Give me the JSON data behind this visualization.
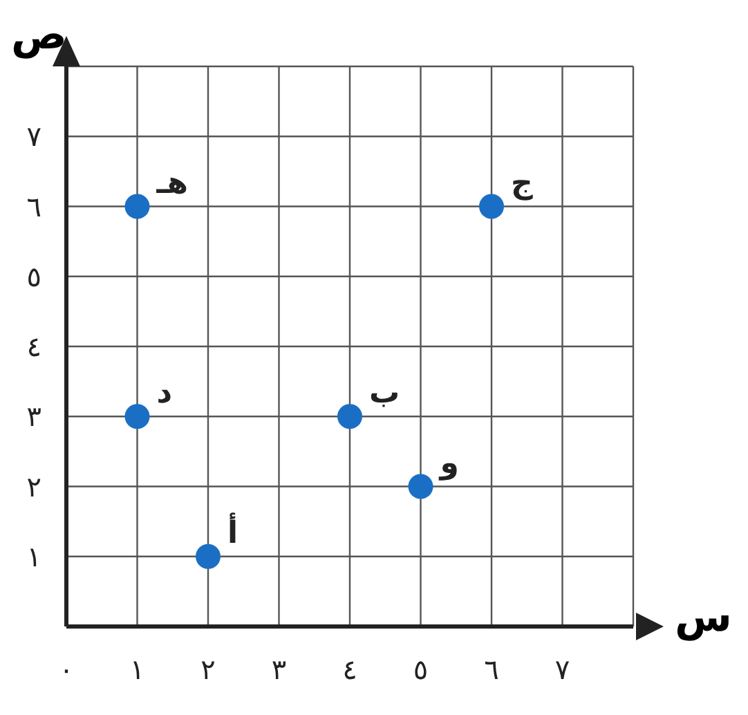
{
  "chart_data": {
    "type": "scatter",
    "xlabel": "س",
    "ylabel": "ص",
    "x": [
      2,
      4,
      6,
      1,
      1,
      5
    ],
    "series": [
      {
        "color": "#1a6fc4",
        "values": [
          1,
          3,
          6,
          3,
          6,
          2
        ]
      }
    ],
    "xlim": [
      0,
      8
    ],
    "ylim": [
      0,
      8
    ],
    "xticks": [
      {
        "value": 0,
        "label": "٠"
      },
      {
        "value": 1,
        "label": "١"
      },
      {
        "value": 2,
        "label": "٢"
      },
      {
        "value": 3,
        "label": "٣"
      },
      {
        "value": 4,
        "label": "٤"
      },
      {
        "value": 5,
        "label": "٥"
      },
      {
        "value": 6,
        "label": "٦"
      },
      {
        "value": 7,
        "label": "٧"
      },
      {
        "value": 8,
        "label": null
      }
    ],
    "yticks": [
      {
        "value": 0,
        "label": null
      },
      {
        "value": 1,
        "label": "١"
      },
      {
        "value": 2,
        "label": "٢"
      },
      {
        "value": 3,
        "label": "٣"
      },
      {
        "value": 4,
        "label": "٤"
      },
      {
        "value": 5,
        "label": "٥"
      },
      {
        "value": 6,
        "label": "٦"
      },
      {
        "value": 7,
        "label": "٧"
      },
      {
        "value": 8,
        "label": null
      }
    ],
    "grid": true,
    "marker": "circle",
    "annotations": [
      {
        "text": "أ",
        "x": 2,
        "y": 1
      },
      {
        "text": "ب",
        "x": 4,
        "y": 3
      },
      {
        "text": "ج",
        "x": 6,
        "y": 6
      },
      {
        "text": "د",
        "x": 1,
        "y": 3
      },
      {
        "text": "هـ",
        "x": 1,
        "y": 6
      },
      {
        "text": "و",
        "x": 5,
        "y": 2
      }
    ]
  }
}
